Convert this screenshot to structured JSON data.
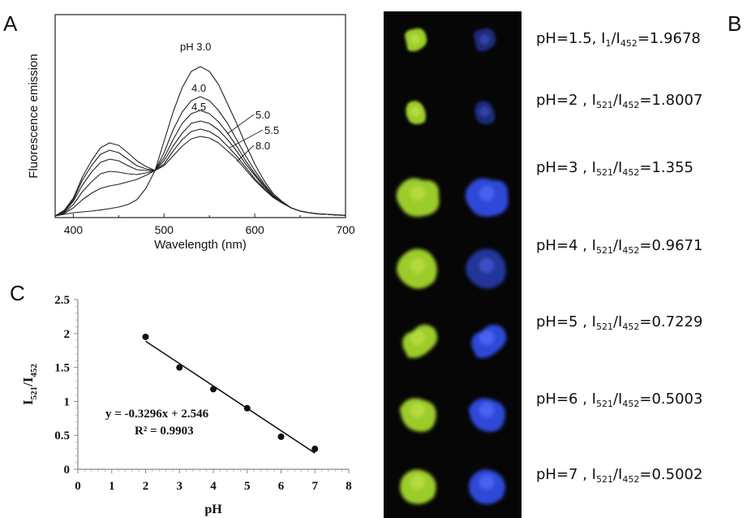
{
  "panels": {
    "a_letter": "A",
    "b_letter": "B",
    "c_letter": "C"
  },
  "chart_data": [
    {
      "id": "A",
      "type": "line",
      "xlabel": "Wavelength (nm)",
      "ylabel": "Fluorescence emission",
      "xlim": [
        380,
        700
      ],
      "ylim": [
        0,
        100
      ],
      "xticks": [
        400,
        500,
        600,
        700
      ],
      "x": [
        380,
        390,
        400,
        410,
        420,
        430,
        440,
        450,
        460,
        470,
        480,
        490,
        500,
        510,
        520,
        530,
        540,
        550,
        560,
        570,
        580,
        590,
        600,
        610,
        620,
        630,
        640,
        650,
        660,
        670,
        680,
        690,
        700
      ],
      "series": [
        {
          "name": "pH 3.0",
          "values": [
            0,
            1,
            2,
            2.5,
            3,
            3.7,
            4.5,
            5.5,
            7,
            10,
            17,
            28,
            46,
            64,
            79,
            89,
            92,
            89,
            81,
            69,
            57,
            44,
            32,
            22,
            14,
            9,
            5,
            3,
            2,
            1.3,
            1,
            0.6,
            0.4
          ]
        },
        {
          "name": "4.0",
          "values": [
            0,
            1.5,
            5,
            10,
            14,
            17,
            18.5,
            19.5,
            21,
            22.5,
            25,
            28,
            39,
            53,
            64,
            71,
            73.5,
            71,
            65,
            57,
            47,
            37,
            28,
            20,
            13,
            8.5,
            5,
            3,
            2,
            1.3,
            1,
            0.6,
            0.4
          ]
        },
        {
          "name": "4.5",
          "values": [
            0,
            2,
            7,
            15,
            21,
            26,
            27.5,
            27,
            26,
            25.5,
            26.5,
            28,
            36,
            47,
            57,
            63,
            65,
            63,
            58,
            51,
            43,
            34,
            26,
            19,
            13,
            8.5,
            5,
            3,
            2,
            1.3,
            1,
            0.6,
            0.4
          ]
        },
        {
          "name": "5.0",
          "values": [
            0,
            2.5,
            9,
            19,
            27,
            33,
            35,
            34,
            31,
            28.5,
            28,
            28,
            34,
            43,
            51,
            57,
            58.5,
            57,
            53,
            47,
            40,
            32,
            25,
            18,
            12.5,
            8.5,
            5,
            3,
            2,
            1.3,
            1,
            0.6,
            0.4
          ]
        },
        {
          "name": "5.5",
          "values": [
            0,
            3,
            10,
            22,
            31,
            38,
            40.5,
            39,
            35,
            31,
            29,
            28,
            32,
            40,
            47,
            52,
            53.5,
            52,
            48.5,
            43,
            37,
            30,
            23,
            17,
            12,
            8,
            5,
            3,
            2,
            1.3,
            1,
            0.6,
            0.4
          ]
        },
        {
          "name": "8.0",
          "values": [
            0,
            3.5,
            11,
            24,
            34,
            42,
            45,
            43.5,
            39,
            34,
            30.5,
            28,
            31,
            37,
            43,
            47.5,
            49,
            48,
            45,
            40,
            35,
            28.5,
            22,
            16.5,
            11.5,
            8,
            5,
            3,
            2,
            1.3,
            1,
            0.6,
            0.4
          ]
        }
      ]
    },
    {
      "id": "C",
      "type": "scatter",
      "xlabel": "pH",
      "ylabel_main": "I",
      "ylabel_sub1": "521",
      "ylabel_sep": "/I",
      "ylabel_sub2": "452",
      "xlim": [
        0,
        8
      ],
      "ylim": [
        0,
        2.5
      ],
      "xticks": [
        "0",
        "1",
        "2",
        "3",
        "4",
        "5",
        "6",
        "7",
        "8"
      ],
      "yticks": [
        "0",
        "0.5",
        "1",
        "1.5",
        "2",
        "2.5"
      ],
      "points": {
        "x": [
          2,
          3,
          4,
          5,
          6,
          7
        ],
        "y": [
          1.95,
          1.5,
          1.18,
          0.9,
          0.48,
          0.3
        ]
      },
      "trendline": {
        "slope": -0.3296,
        "intercept": 2.546,
        "x_range": [
          2,
          7
        ]
      },
      "equation": "y = -0.3296x + 2.546",
      "r2": "R² = 0.9903"
    }
  ],
  "microscopy": {
    "rows": [
      {
        "ph": "pH=1.5",
        "num": "1",
        "den": "452",
        "sep": ", ",
        "value": "=1.9678"
      },
      {
        "ph": "pH=2",
        "num": "521",
        "den": "452",
        "sep": " , ",
        "value": "=1.8007"
      },
      {
        "ph": "pH=3",
        "num": "521",
        "den": "452",
        "sep": " , ",
        "value": "=1.355"
      },
      {
        "ph": "pH=4",
        "num": "521",
        "den": "452",
        "sep": " , ",
        "value": "=0.9671"
      },
      {
        "ph": "pH=5",
        "num": "521",
        "den": "452",
        "sep": " , ",
        "value": "=0.7229"
      },
      {
        "ph": "pH=6",
        "num": "521",
        "den": "452",
        "sep": " , ",
        "value": "=0.5003"
      },
      {
        "ph": "pH=7",
        "num": "521",
        "den": "452",
        "sep": " , ",
        "value": "=0.5002"
      }
    ],
    "colors": {
      "green": "#9ccc2a",
      "blue": "#2f48d8",
      "background": "#060606"
    }
  }
}
